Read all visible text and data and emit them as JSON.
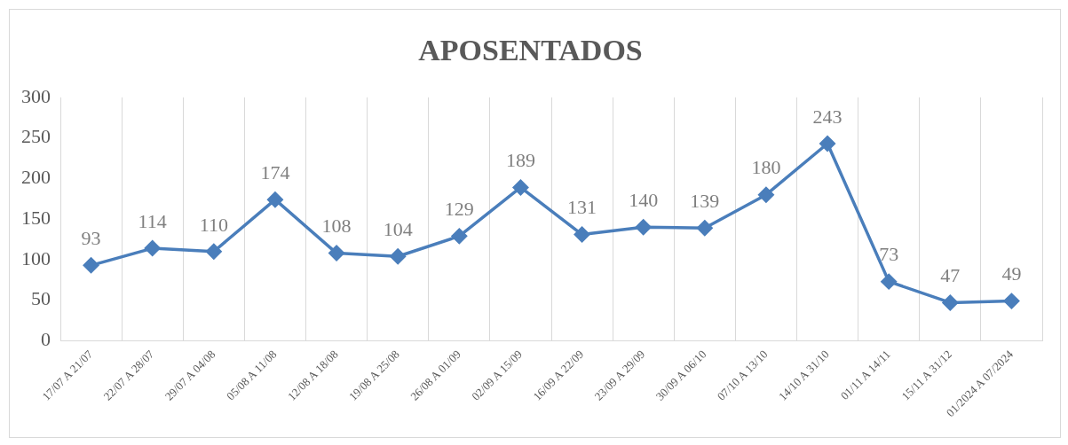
{
  "chart_data": {
    "type": "line",
    "title": "APOSENTADOS",
    "categories": [
      "17/07 A 21/07",
      "22/07 A 28/07",
      "29/07 A 04/08",
      "05/08 A 11/08",
      "12/08 A 18/08",
      "19/08 A 25/08",
      "26/08 A 01/09",
      "02/09 A 15/09",
      "16/09 A 22/09",
      "23/09 A 29/09",
      "30/09 A 06/10",
      "07/10 A 13/10",
      "14/10 A 31/10",
      "01/11 A 14/11",
      "15/11 A 31/12",
      "01/2024 A 07/2024"
    ],
    "values": [
      93,
      114,
      110,
      174,
      108,
      104,
      129,
      189,
      131,
      140,
      139,
      180,
      243,
      73,
      47,
      49
    ],
    "color": "#4a7ebb",
    "ylim": [
      0,
      300
    ],
    "yticks": [
      0,
      50,
      100,
      150,
      200,
      250,
      300
    ],
    "grid": "x",
    "legend": false,
    "marker": "diamond",
    "line_style": "solid",
    "data_labels": true
  }
}
